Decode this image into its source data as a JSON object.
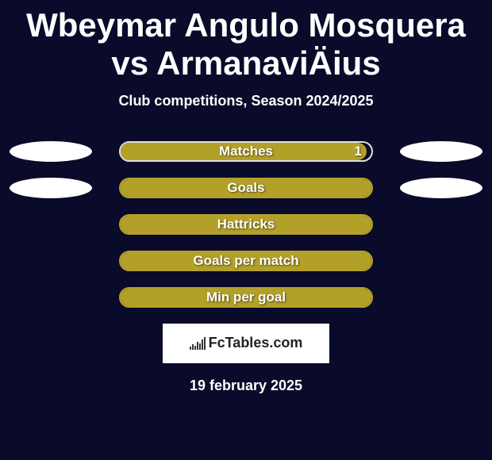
{
  "title": "Wbeymar Angulo Mosquera vs ArmanaviÄius",
  "title_fontsize": 42,
  "subtitle": "Club competitions, Season 2024/2025",
  "subtitle_fontsize": 18,
  "background_color": "#0a0a2a",
  "text_color": "#ffffff",
  "rows": [
    {
      "label": "Matches",
      "left_ellipse": true,
      "right_ellipse": true,
      "ellipse_color": "#ffffff",
      "bar_border_color": "#e0e0e0",
      "bar_fill_color": "#b3a029",
      "bar_fill_side": "left",
      "bar_fill_pct": 98,
      "right_value": "1",
      "label_fontsize": 17
    },
    {
      "label": "Goals",
      "left_ellipse": true,
      "right_ellipse": true,
      "ellipse_color": "#ffffff",
      "bar_border_color": "#b3a029",
      "bar_fill_color": "#b3a029",
      "bar_fill_side": "full",
      "bar_fill_pct": 100,
      "right_value": "",
      "label_fontsize": 17
    },
    {
      "label": "Hattricks",
      "left_ellipse": false,
      "right_ellipse": false,
      "ellipse_color": "#ffffff",
      "bar_border_color": "#b3a029",
      "bar_fill_color": "#b3a029",
      "bar_fill_side": "full",
      "bar_fill_pct": 100,
      "right_value": "",
      "label_fontsize": 17
    },
    {
      "label": "Goals per match",
      "left_ellipse": false,
      "right_ellipse": false,
      "ellipse_color": "#ffffff",
      "bar_border_color": "#b3a029",
      "bar_fill_color": "#b3a029",
      "bar_fill_side": "full",
      "bar_fill_pct": 100,
      "right_value": "",
      "label_fontsize": 17
    },
    {
      "label": "Min per goal",
      "left_ellipse": false,
      "right_ellipse": false,
      "ellipse_color": "#ffffff",
      "bar_border_color": "#b3a029",
      "bar_fill_color": "#b3a029",
      "bar_fill_side": "full",
      "bar_fill_pct": 100,
      "right_value": "",
      "label_fontsize": 17
    }
  ],
  "logo": {
    "text": "FcTables.com",
    "fontsize": 18,
    "box_bg": "#ffffff",
    "text_color": "#222222",
    "bar_color": "#333333"
  },
  "date": "19 february 2025",
  "date_fontsize": 18
}
